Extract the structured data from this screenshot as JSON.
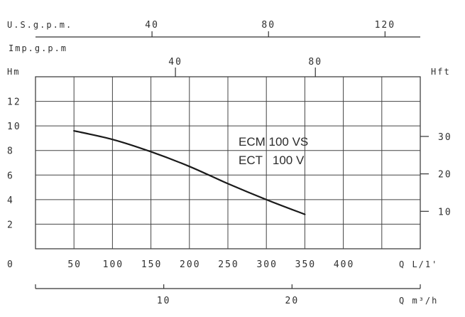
{
  "chart_data": {
    "type": "line",
    "title": "",
    "annotations": [
      "ECM 100 VS",
      "ECT   100 V"
    ],
    "xlabel": "Q L/1'",
    "ylabel": "Hm",
    "ylabel_right": "Hft",
    "xlim": [
      0,
      500
    ],
    "ylim": [
      0,
      14
    ],
    "x_ticks": [
      50,
      100,
      150,
      200,
      250,
      300,
      350,
      400
    ],
    "y_ticks": [
      0,
      2,
      4,
      6,
      8,
      10,
      12
    ],
    "grid": true,
    "secondary_axes": {
      "usgpm": {
        "label": "U.S.g.p.m.",
        "ticks": [
          40,
          80,
          120
        ]
      },
      "impgpm": {
        "label": "Imp.g.p.m",
        "ticks": [
          40,
          80
        ]
      },
      "hft": {
        "label": "Hft",
        "ticks": [
          30,
          20,
          10
        ]
      },
      "qm3h": {
        "label": "Q m³/h",
        "ticks": [
          10,
          20
        ]
      }
    },
    "series": [
      {
        "x": [
          50,
          100,
          150,
          200,
          250,
          300,
          350
        ],
        "y": [
          9.6,
          8.9,
          7.9,
          6.7,
          5.3,
          4.0,
          2.8
        ]
      }
    ]
  }
}
